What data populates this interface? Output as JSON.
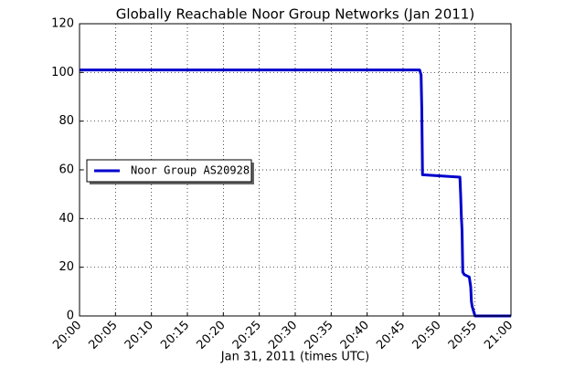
{
  "chart_data": {
    "type": "line",
    "title": "Globally Reachable Noor Group Networks (Jan 2011)",
    "x_label": "Jan 31, 2011 (times UTC)",
    "series": [
      {
        "name": "Noor Group AS20928",
        "color": "#0000cc",
        "x": [
          0,
          47.3,
          47.5,
          47.6,
          47.7,
          52.9,
          53.0,
          53.1,
          53.2,
          53.3,
          53.5,
          54.2,
          54.4,
          54.5,
          54.6,
          54.8,
          55.0,
          60
        ],
        "values": [
          101,
          101,
          99,
          85,
          58,
          57,
          50,
          41,
          35,
          18,
          17,
          16,
          12,
          6,
          4,
          2,
          0,
          0
        ]
      }
    ],
    "xlim": [
      0,
      60
    ],
    "xticks": [
      {
        "value": 0,
        "label": "20:00"
      },
      {
        "value": 5,
        "label": "20:05"
      },
      {
        "value": 10,
        "label": "20:10"
      },
      {
        "value": 15,
        "label": "20:15"
      },
      {
        "value": 20,
        "label": "20:20"
      },
      {
        "value": 25,
        "label": "20:25"
      },
      {
        "value": 30,
        "label": "20:30"
      },
      {
        "value": 35,
        "label": "20:35"
      },
      {
        "value": 40,
        "label": "20:40"
      },
      {
        "value": 45,
        "label": "20:45"
      },
      {
        "value": 50,
        "label": "20:50"
      },
      {
        "value": 55,
        "label": "20:55"
      },
      {
        "value": 60,
        "label": "21:00"
      }
    ],
    "ylim": [
      0,
      120
    ],
    "yticks": [
      0,
      20,
      40,
      60,
      80,
      100,
      120
    ],
    "grid": true,
    "legend": "left"
  }
}
